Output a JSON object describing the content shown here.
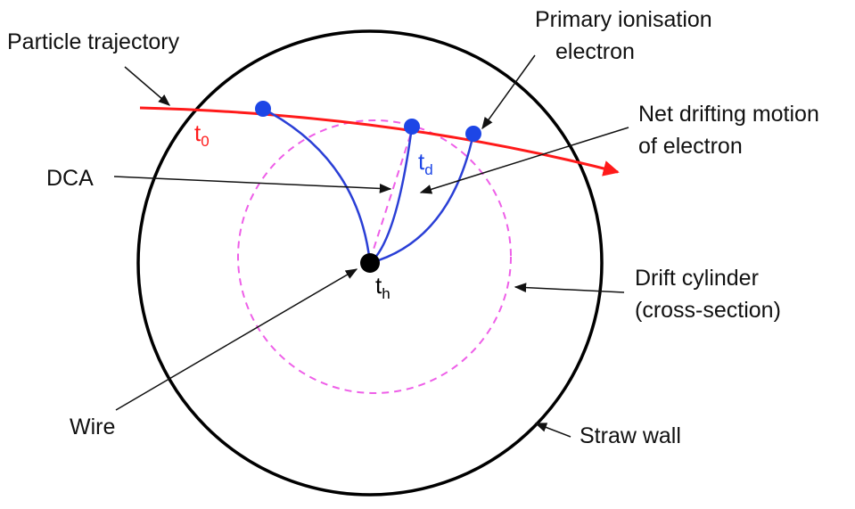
{
  "colors": {
    "trajectory": "#ff1a1a",
    "drift_path": "#2a3fd6",
    "electron": "#1d46e6",
    "drift_cylinder": "#ee5fe8",
    "wire": "#000000",
    "straw_wall": "#000000",
    "leader": "#111111"
  },
  "labels": {
    "particle_trajectory": "Particle trajectory",
    "primary_ionisation_line1": "Primary ionisation",
    "primary_ionisation_line2": "electron",
    "net_drifting_line1": "Net drifting motion",
    "net_drifting_line2": "of electron",
    "dca": "DCA",
    "drift_cylinder_line1": "Drift cylinder",
    "drift_cylinder_line2": "(cross-section)",
    "wire": "Wire",
    "straw_wall": "Straw wall"
  },
  "time_labels": {
    "t0_base": "t",
    "t0_sub": "0",
    "td_base": "t",
    "td_sub": "d",
    "th_base": "t",
    "th_sub": "h"
  }
}
